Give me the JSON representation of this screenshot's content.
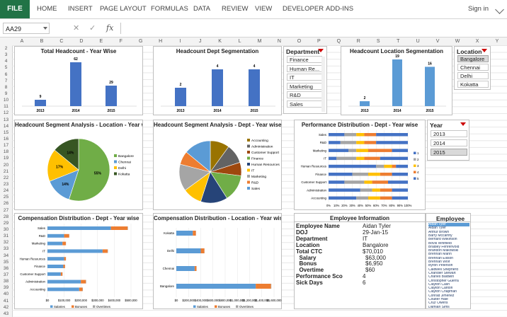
{
  "ribbon": {
    "file": "FILE",
    "tabs": [
      "HOME",
      "INSERT",
      "PAGE LAYOUT",
      "FORMULAS",
      "DATA",
      "REVIEW",
      "VIEW",
      "DEVELOPER",
      "ADD-INS"
    ],
    "signin": "Sign in"
  },
  "formula_bar": {
    "name_box": "AA29",
    "cancel": "✕",
    "enter": "✓",
    "fx": "fx",
    "value": ""
  },
  "columns": [
    "A",
    "B",
    "C",
    "D",
    "E",
    "F",
    "G",
    "H",
    "I",
    "J",
    "K",
    "L",
    "M",
    "N",
    "O",
    "P",
    "Q",
    "R",
    "S",
    "T",
    "U",
    "V",
    "W",
    "X",
    "Y"
  ],
  "rows": [
    "2",
    "3",
    "4",
    "5",
    "6",
    "7",
    "8",
    "9",
    "10",
    "11",
    "12",
    "13",
    "14",
    "15",
    "16",
    "17",
    "18",
    "19",
    "20",
    "21",
    "22",
    "23",
    "24",
    "25",
    "26",
    "27",
    "28",
    "29",
    "30",
    "31",
    "32",
    "33",
    "34",
    "35",
    "36",
    "37",
    "38",
    "39",
    "40",
    "41",
    "42",
    "43"
  ],
  "colors": {
    "blue": "#4472c4",
    "orange": "#ed7d31",
    "gray": "#a5a5a5",
    "yellow": "#ffc000",
    "lightblue": "#5b9bd5",
    "green": "#70ad47",
    "excel_green": "#217346"
  },
  "chart_data": [
    {
      "type": "bar",
      "title": "Total Headcount - Year Wise",
      "categories": [
        "2013",
        "2014",
        "2015"
      ],
      "values": [
        9,
        62,
        29
      ]
    },
    {
      "type": "bar",
      "title": "Headcount Dept Segmentation",
      "categories": [
        "2013",
        "2014",
        "2015"
      ],
      "values": [
        2,
        4,
        4
      ]
    },
    {
      "type": "bar",
      "title": "Headcount Location Segmentation",
      "categories": [
        "2013",
        "2014",
        "2015"
      ],
      "values": [
        2,
        19,
        16
      ]
    },
    {
      "type": "pie",
      "title": "Headcount Segment Analysis - Location - Year wise",
      "labels": [
        "Bangalore",
        "Chennai",
        "Delhi",
        "Kokatta"
      ],
      "values": [
        55,
        14,
        17,
        14
      ],
      "data_labels": [
        "55%",
        "14%",
        "17%",
        "14%"
      ]
    },
    {
      "type": "pie",
      "title": "Headcount Segment Analysis - Dept - Year wise",
      "labels": [
        "Accounting",
        "Administration",
        "Customer Support",
        "Finance",
        "Human Resources",
        "IT",
        "Marketing",
        "R&D",
        "Sales"
      ],
      "values": [
        10,
        10,
        7,
        14,
        14,
        10,
        14,
        7,
        14
      ]
    },
    {
      "type": "bar",
      "title": "Performance Distribution - Dept - Year wise",
      "categories": [
        "Sales",
        "R&D",
        "Marketing",
        "IT",
        "Human Resources",
        "Finance",
        "Customer Support",
        "Administration",
        "Accounting"
      ],
      "series": [
        {
          "name": "1",
          "values": [
            20,
            15,
            25,
            10,
            60,
            30,
            20,
            40,
            35
          ]
        },
        {
          "name": "2",
          "values": [
            15,
            20,
            10,
            25,
            10,
            20,
            25,
            15,
            15
          ]
        },
        {
          "name": "3",
          "values": [
            10,
            10,
            15,
            10,
            10,
            15,
            10,
            10,
            15
          ]
        },
        {
          "name": "4",
          "values": [
            15,
            15,
            30,
            20,
            5,
            15,
            20,
            15,
            15
          ]
        },
        {
          "name": "5",
          "values": [
            40,
            40,
            20,
            35,
            15,
            20,
            25,
            20,
            20
          ]
        }
      ],
      "xticks": [
        "0%",
        "10%",
        "20%",
        "30%",
        "40%",
        "50%",
        "60%",
        "70%",
        "80%",
        "90%",
        "100%"
      ]
    },
    {
      "type": "bar",
      "title": "Compensation Distribution - Dept - Year wise",
      "categories": [
        "Sales",
        "R&D",
        "Marketing",
        "IT",
        "Human Resources",
        "Finance",
        "Customer Support",
        "Administration",
        "Accounting"
      ],
      "series": [
        {
          "name": "Salaries",
          "values": [
            380000,
            100000,
            90000,
            330000,
            100000,
            95000,
            80000,
            200000,
            190000
          ]
        },
        {
          "name": "Bonuses",
          "values": [
            100000,
            30000,
            20000,
            30000,
            10000,
            10000,
            10000,
            30000,
            20000
          ]
        },
        {
          "name": "Overtimes",
          "values": [
            2000,
            1000,
            1000,
            2000,
            1000,
            1000,
            1000,
            2000,
            2000
          ]
        }
      ],
      "xticks": [
        "$0",
        "$100,000",
        "$200,000",
        "$300,000",
        "$400,000",
        "$500,000"
      ]
    },
    {
      "type": "bar",
      "title": "Compensation Distribution - Location - Year wise",
      "categories": [
        "Kokatta",
        "Delhi",
        "Chennai",
        "Bangalore"
      ],
      "series": [
        {
          "name": "Salaries",
          "values": [
            270000,
            400000,
            300000,
            1300000
          ]
        },
        {
          "name": "Bonuses",
          "values": [
            50000,
            60000,
            30000,
            250000
          ]
        },
        {
          "name": "Overtimes",
          "values": [
            2000,
            2000,
            2000,
            6000
          ]
        }
      ],
      "xticks": [
        "$0",
        "$200,000",
        "$400,000",
        "$600,000",
        "$800,000",
        "$1,000,000",
        "$1,200,000",
        "$1,400,000",
        "$1,600,000"
      ]
    }
  ],
  "slicers": {
    "department": {
      "title": "Department",
      "items": [
        "Finance",
        "Human Re...",
        "IT",
        "Marketing",
        "R&D",
        "Sales"
      ]
    },
    "location": {
      "title": "Location",
      "items": [
        "Bangalore",
        "Chennai",
        "Delhi",
        "Kokatta"
      ],
      "selected": "Bangalore"
    },
    "year": {
      "title": "Year",
      "items": [
        "2013",
        "2014",
        "2015"
      ],
      "selected": "2015"
    },
    "employee": {
      "title": "Employee",
      "items": [
        "Aidan Tyler",
        "Aidan Tyler",
        "Arthur Brown",
        "Barry Mccarthy",
        "Bernard Wilkinson",
        "Bovis Whitfield",
        "Bradley Fehrenvold",
        "Brandon Makowski",
        "Brennan Mann",
        "Brennan Ellison",
        "Brennan Wolf",
        "Byron Peterson",
        "Caldwell Shepherd",
        "Chandler Stewart",
        "Charles Baldwin",
        "Christopher Guerra",
        "Clayton Cash",
        "Clayton Carlton",
        "Clayton Chapman",
        "Conrad Jimenez",
        "Coulter Hale",
        "Cruz Owens",
        "Damian Sims"
      ],
      "selected": "Aidan Tyler"
    }
  },
  "employee_info": {
    "title": "Employee Information",
    "fields": [
      {
        "label": "Employee Name",
        "value": "Aidan Tyler"
      },
      {
        "label": "DOJ",
        "value": "29-Jan-15"
      },
      {
        "label": "Department",
        "value": "IT"
      },
      {
        "label": "Location",
        "value": "Bangalore"
      },
      {
        "label": "Total CTC",
        "value": "$70,010"
      },
      {
        "label": "  Salary",
        "value": "$63,000"
      },
      {
        "label": "  Bonus",
        "value": "$6,950"
      },
      {
        "label": "  Overtime",
        "value": "$60"
      },
      {
        "label": "Performance Sco",
        "value": "4"
      },
      {
        "label": "Sick Days",
        "value": "6"
      }
    ]
  }
}
